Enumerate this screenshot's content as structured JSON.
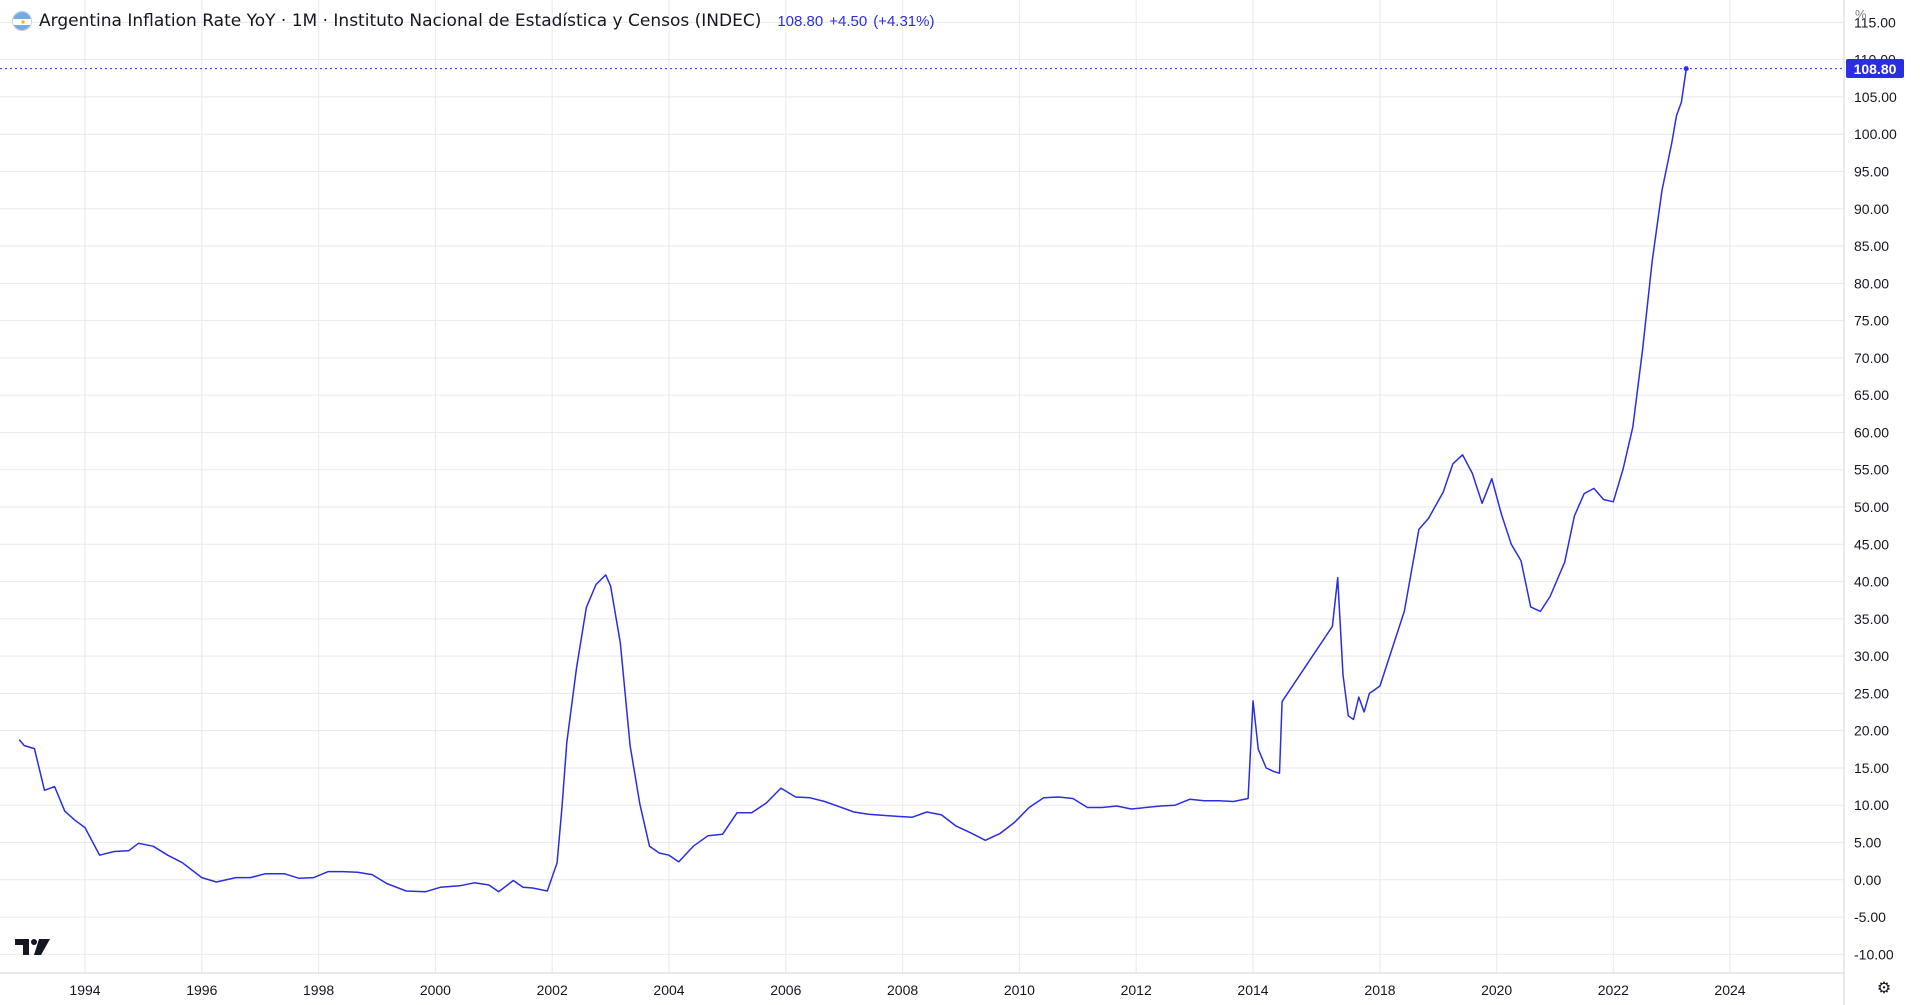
{
  "legend": {
    "title": "Argentina Inflation Rate YoY · 1M · Instituto Nacional de Estadística y Censos (INDEC)",
    "last_value": "108.80",
    "change": "+4.50",
    "change_pct": "(+4.31%)"
  },
  "axis_unit": "%",
  "price_tag": "108.80",
  "colors": {
    "series": "#2a2ee0",
    "grid": "#e8eaef",
    "axis_text": "#131722",
    "price_tag_bg": "#2a2ee0"
  },
  "icons": {
    "settings": "gear-icon",
    "logo": "tradingview-logo",
    "flag": "argentina-flag-icon"
  },
  "chart_data": {
    "type": "line",
    "title": "Argentina Inflation Rate YoY · 1M · Instituto Nacional de Estadística y Censos (INDEC)",
    "xlabel": "",
    "ylabel": "%",
    "ylim": [
      -12.5,
      118
    ],
    "xlim": [
      1992.6,
      2026.0
    ],
    "grid": true,
    "y_scale_position": "right",
    "x_ticks": [
      "1994",
      "1996",
      "1998",
      "2000",
      "2002",
      "2004",
      "2006",
      "2008",
      "2010",
      "2012",
      "2014",
      "2018",
      "2020",
      "2022",
      "2024"
    ],
    "y_ticks": [
      "115.00",
      "110.00",
      "105.00",
      "100.00",
      "95.00",
      "90.00",
      "85.00",
      "80.00",
      "75.00",
      "70.00",
      "65.00",
      "60.00",
      "55.00",
      "50.00",
      "45.00",
      "40.00",
      "35.00",
      "30.00",
      "25.00",
      "20.00",
      "15.00",
      "10.00",
      "5.00",
      "0.00",
      "-5.00",
      "-10.00"
    ],
    "last_value": 108.8,
    "series": [
      {
        "values": [
          [
            "1992-12",
            18.8
          ],
          [
            "1993-01",
            18.0
          ],
          [
            "1993-03",
            17.6
          ],
          [
            "1993-05",
            12.0
          ],
          [
            "1993-07",
            12.5
          ],
          [
            "1993-09",
            9.2
          ],
          [
            "1993-11",
            8.0
          ],
          [
            "1994-01",
            7.0
          ],
          [
            "1994-04",
            3.3
          ],
          [
            "1994-07",
            3.8
          ],
          [
            "1994-10",
            3.9
          ],
          [
            "1994-12",
            4.9
          ],
          [
            "1995-03",
            4.5
          ],
          [
            "1995-06",
            3.3
          ],
          [
            "1995-09",
            2.3
          ],
          [
            "1996-01",
            0.3
          ],
          [
            "1996-04",
            -0.3
          ],
          [
            "1996-08",
            0.3
          ],
          [
            "1996-11",
            0.3
          ],
          [
            "1997-02",
            0.8
          ],
          [
            "1997-06",
            0.8
          ],
          [
            "1997-09",
            0.2
          ],
          [
            "1997-12",
            0.3
          ],
          [
            "1998-03",
            1.1
          ],
          [
            "1998-06",
            1.1
          ],
          [
            "1998-09",
            1.0
          ],
          [
            "1998-12",
            0.7
          ],
          [
            "1999-03",
            -0.5
          ],
          [
            "1999-07",
            -1.5
          ],
          [
            "1999-11",
            -1.6
          ],
          [
            "2000-02",
            -1.0
          ],
          [
            "2000-06",
            -0.8
          ],
          [
            "2000-09",
            -0.4
          ],
          [
            "2000-12",
            -0.7
          ],
          [
            "2001-02",
            -1.6
          ],
          [
            "2001-05",
            -0.1
          ],
          [
            "2001-07",
            -1.0
          ],
          [
            "2001-09",
            -1.1
          ],
          [
            "2001-12",
            -1.5
          ],
          [
            "2002-02",
            2.3
          ],
          [
            "2002-03",
            9.6
          ],
          [
            "2002-04",
            18.4
          ],
          [
            "2002-06",
            28.4
          ],
          [
            "2002-08",
            36.5
          ],
          [
            "2002-10",
            39.6
          ],
          [
            "2002-12",
            40.9
          ],
          [
            "2003-01",
            39.4
          ],
          [
            "2003-03",
            31.8
          ],
          [
            "2003-05",
            18.0
          ],
          [
            "2003-07",
            10.2
          ],
          [
            "2003-09",
            4.5
          ],
          [
            "2003-11",
            3.6
          ],
          [
            "2004-01",
            3.3
          ],
          [
            "2004-03",
            2.4
          ],
          [
            "2004-06",
            4.5
          ],
          [
            "2004-09",
            5.9
          ],
          [
            "2004-12",
            6.1
          ],
          [
            "2005-03",
            9.0
          ],
          [
            "2005-06",
            9.0
          ],
          [
            "2005-09",
            10.3
          ],
          [
            "2005-12",
            12.3
          ],
          [
            "2006-03",
            11.1
          ],
          [
            "2006-06",
            11.0
          ],
          [
            "2006-09",
            10.5
          ],
          [
            "2006-12",
            9.8
          ],
          [
            "2007-03",
            9.1
          ],
          [
            "2007-06",
            8.8
          ],
          [
            "2007-12",
            8.5
          ],
          [
            "2008-03",
            8.4
          ],
          [
            "2008-06",
            9.1
          ],
          [
            "2008-09",
            8.7
          ],
          [
            "2008-12",
            7.2
          ],
          [
            "2009-03",
            6.3
          ],
          [
            "2009-06",
            5.3
          ],
          [
            "2009-09",
            6.2
          ],
          [
            "2009-12",
            7.7
          ],
          [
            "2010-03",
            9.7
          ],
          [
            "2010-06",
            11.0
          ],
          [
            "2010-09",
            11.1
          ],
          [
            "2010-12",
            10.9
          ],
          [
            "2011-03",
            9.7
          ],
          [
            "2011-06",
            9.7
          ],
          [
            "2011-09",
            9.9
          ],
          [
            "2011-12",
            9.5
          ],
          [
            "2012-06",
            9.9
          ],
          [
            "2012-09",
            10.0
          ],
          [
            "2012-12",
            10.8
          ],
          [
            "2013-03",
            10.6
          ],
          [
            "2013-06",
            10.6
          ],
          [
            "2013-09",
            10.5
          ],
          [
            "2013-12",
            10.9
          ],
          [
            "2014-01",
            24.0
          ],
          [
            "2014-03",
            17.5
          ],
          [
            "2014-06",
            15.0
          ],
          [
            "2014-09",
            14.5
          ],
          [
            "2014-11",
            14.3
          ],
          [
            "2014-12",
            23.9
          ],
          [
            "2016-07",
            34.0
          ],
          [
            "2016-09",
            40.5
          ],
          [
            "2016-11",
            27.5
          ],
          [
            "2017-01",
            22.0
          ],
          [
            "2017-03",
            21.5
          ],
          [
            "2017-05",
            24.5
          ],
          [
            "2017-07",
            22.5
          ],
          [
            "2017-09",
            25.0
          ],
          [
            "2017-11",
            25.5
          ],
          [
            "2018-01",
            26.0
          ],
          [
            "2018-03",
            30.0
          ],
          [
            "2018-06",
            36.0
          ],
          [
            "2018-09",
            47.0
          ],
          [
            "2018-11",
            48.5
          ],
          [
            "2019-02",
            52.0
          ],
          [
            "2019-04",
            55.8
          ],
          [
            "2019-06",
            57.0
          ],
          [
            "2019-08",
            54.5
          ],
          [
            "2019-10",
            50.5
          ],
          [
            "2019-12",
            53.8
          ],
          [
            "2020-02",
            49.0
          ],
          [
            "2020-04",
            45.0
          ],
          [
            "2020-06",
            42.8
          ],
          [
            "2020-08",
            36.6
          ],
          [
            "2020-10",
            36.0
          ],
          [
            "2020-12",
            38.0
          ],
          [
            "2021-03",
            42.6
          ],
          [
            "2021-05",
            48.8
          ],
          [
            "2021-07",
            51.8
          ],
          [
            "2021-09",
            52.5
          ],
          [
            "2021-11",
            51.0
          ],
          [
            "2022-01",
            50.7
          ],
          [
            "2022-03",
            55.1
          ],
          [
            "2022-05",
            60.7
          ],
          [
            "2022-07",
            71.0
          ],
          [
            "2022-09",
            83.0
          ],
          [
            "2022-11",
            92.4
          ],
          [
            "2023-01",
            98.8
          ],
          [
            "2023-02",
            102.5
          ],
          [
            "2023-03",
            104.3
          ],
          [
            "2023-04",
            108.8
          ]
        ]
      }
    ]
  }
}
